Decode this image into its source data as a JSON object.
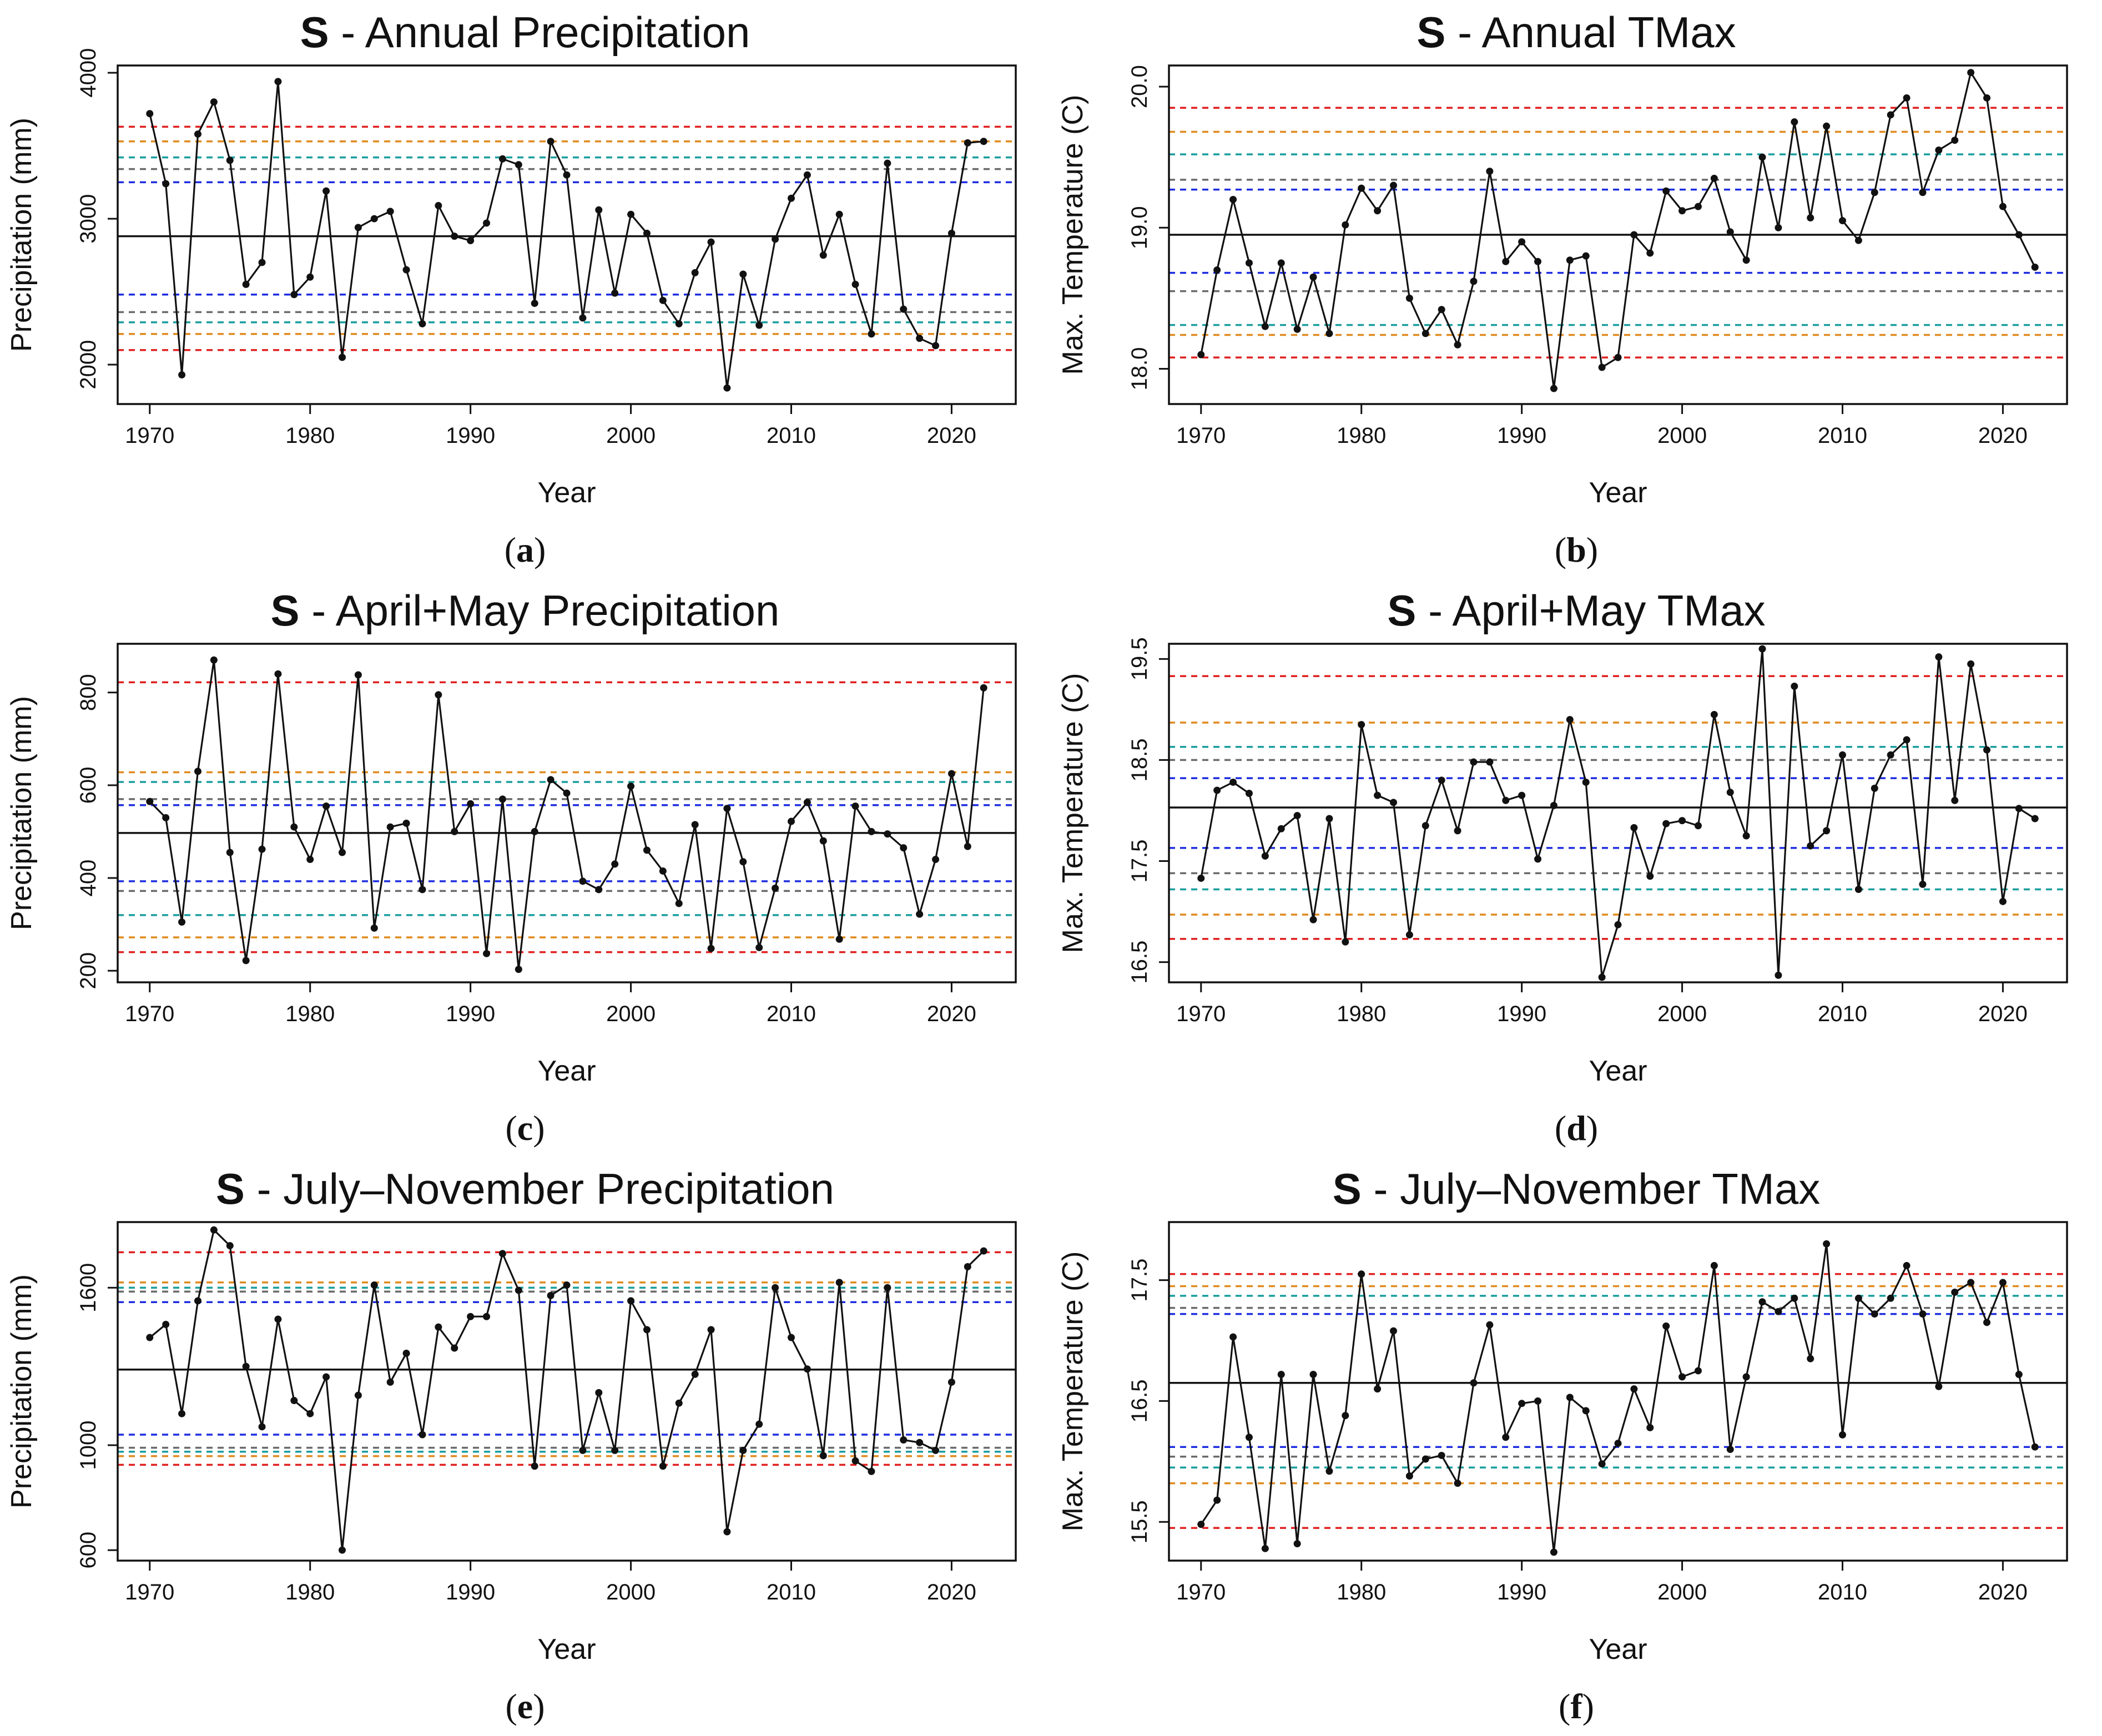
{
  "chart_data": [
    {
      "type": "line",
      "caption_letter": "a",
      "title_bold": "S",
      "title_rest": " - Annual Precipitation",
      "xlabel": "Year",
      "ylabel": "Precipitation (mm)",
      "xlim": [
        1968,
        2024
      ],
      "ylim": [
        1730,
        4050
      ],
      "xticks": [
        1970,
        1980,
        1990,
        2000,
        2010,
        2020
      ],
      "yticks": [
        2000,
        3000,
        4000
      ],
      "ytick_labels": [
        "2000",
        "3000",
        "4000"
      ],
      "mean": 2880,
      "thresholds": [
        {
          "color": "#e02020",
          "values": [
            3630,
            2100
          ]
        },
        {
          "color": "#e08a1e",
          "values": [
            3530,
            2210
          ]
        },
        {
          "color": "#6b6b6b",
          "values": [
            3340,
            2360
          ]
        },
        {
          "color": "#1a9e9e",
          "values": [
            3420,
            2290
          ]
        },
        {
          "color": "#1f2ee0",
          "values": [
            3250,
            2480
          ]
        }
      ],
      "x": [
        1970,
        1971,
        1972,
        1973,
        1974,
        1975,
        1976,
        1977,
        1978,
        1979,
        1980,
        1981,
        1982,
        1983,
        1984,
        1985,
        1986,
        1987,
        1988,
        1989,
        1990,
        1991,
        1992,
        1993,
        1994,
        1995,
        1996,
        1997,
        1998,
        1999,
        2000,
        2001,
        2002,
        2003,
        2004,
        2005,
        2006,
        2007,
        2008,
        2009,
        2010,
        2011,
        2012,
        2013,
        2014,
        2015,
        2016,
        2017,
        2018,
        2019,
        2020,
        2021,
        2022
      ],
      "values": [
        3720,
        3240,
        1930,
        3580,
        3800,
        3400,
        2550,
        2700,
        3940,
        2480,
        2600,
        3190,
        2050,
        2940,
        3000,
        3050,
        2650,
        2280,
        3090,
        2880,
        2850,
        2970,
        3410,
        3370,
        2420,
        3530,
        3300,
        2320,
        3060,
        2490,
        3030,
        2900,
        2440,
        2280,
        2630,
        2840,
        1840,
        2620,
        2270,
        2860,
        3140,
        3300,
        2750,
        3030,
        2550,
        2210,
        3380,
        2380,
        2180,
        2130,
        2900,
        3520,
        3530
      ]
    },
    {
      "type": "line",
      "caption_letter": "b",
      "title_bold": "S",
      "title_rest": " - Annual TMax",
      "xlabel": "Year",
      "ylabel": "Max. Temperature (C)",
      "xlim": [
        1968,
        2024
      ],
      "ylim": [
        17.75,
        20.15
      ],
      "xticks": [
        1970,
        1980,
        1990,
        2000,
        2010,
        2020
      ],
      "yticks": [
        18.0,
        19.0,
        20.0
      ],
      "ytick_labels": [
        "18.0",
        "19.0",
        "20.0"
      ],
      "mean": 18.95,
      "thresholds": [
        {
          "color": "#e02020",
          "values": [
            19.85,
            18.08
          ]
        },
        {
          "color": "#e08a1e",
          "values": [
            19.68,
            18.24
          ]
        },
        {
          "color": "#6b6b6b",
          "values": [
            19.34,
            18.55
          ]
        },
        {
          "color": "#1a9e9e",
          "values": [
            19.52,
            18.31
          ]
        },
        {
          "color": "#1f2ee0",
          "values": [
            19.27,
            18.68
          ]
        }
      ],
      "x": [
        1970,
        1971,
        1972,
        1973,
        1974,
        1975,
        1976,
        1977,
        1978,
        1979,
        1980,
        1981,
        1982,
        1983,
        1984,
        1985,
        1986,
        1987,
        1988,
        1989,
        1990,
        1991,
        1992,
        1993,
        1994,
        1995,
        1996,
        1997,
        1998,
        1999,
        2000,
        2001,
        2002,
        2003,
        2004,
        2005,
        2006,
        2007,
        2008,
        2009,
        2010,
        2011,
        2012,
        2013,
        2014,
        2015,
        2016,
        2017,
        2018,
        2019,
        2020,
        2021,
        2022
      ],
      "values": [
        18.1,
        18.7,
        19.2,
        18.75,
        18.3,
        18.75,
        18.28,
        18.65,
        18.25,
        19.02,
        19.28,
        19.12,
        19.3,
        18.5,
        18.25,
        18.42,
        18.17,
        18.62,
        19.4,
        18.76,
        18.9,
        18.76,
        17.86,
        18.77,
        18.8,
        18.01,
        18.08,
        18.95,
        18.82,
        19.26,
        19.12,
        19.15,
        19.35,
        18.97,
        18.77,
        19.5,
        19.0,
        19.75,
        19.07,
        19.72,
        19.05,
        18.91,
        19.25,
        19.8,
        19.92,
        19.25,
        19.55,
        19.62,
        20.1,
        19.92,
        19.15,
        18.95,
        18.72
      ]
    },
    {
      "type": "line",
      "caption_letter": "c",
      "title_bold": "S",
      "title_rest": " - April+May Precipitation",
      "xlabel": "Year",
      "ylabel": "Precipitation (mm)",
      "xlim": [
        1968,
        2024
      ],
      "ylim": [
        175,
        905
      ],
      "xticks": [
        1970,
        1980,
        1990,
        2000,
        2010,
        2020
      ],
      "yticks": [
        200,
        400,
        600,
        800
      ],
      "ytick_labels": [
        "200",
        "400",
        "600",
        "800"
      ],
      "mean": 497,
      "thresholds": [
        {
          "color": "#e02020",
          "values": [
            822,
            240
          ]
        },
        {
          "color": "#e08a1e",
          "values": [
            628,
            272
          ]
        },
        {
          "color": "#6b6b6b",
          "values": [
            570,
            372
          ]
        },
        {
          "color": "#1a9e9e",
          "values": [
            607,
            320
          ]
        },
        {
          "color": "#1f2ee0",
          "values": [
            557,
            393
          ]
        }
      ],
      "x": [
        1970,
        1971,
        1972,
        1973,
        1974,
        1975,
        1976,
        1977,
        1978,
        1979,
        1980,
        1981,
        1982,
        1983,
        1984,
        1985,
        1986,
        1987,
        1988,
        1989,
        1990,
        1991,
        1992,
        1993,
        1994,
        1995,
        1996,
        1997,
        1998,
        1999,
        2000,
        2001,
        2002,
        2003,
        2004,
        2005,
        2006,
        2007,
        2008,
        2009,
        2010,
        2011,
        2012,
        2013,
        2014,
        2015,
        2016,
        2017,
        2018,
        2019,
        2020,
        2021,
        2022
      ],
      "values": [
        565,
        530,
        305,
        630,
        870,
        455,
        222,
        462,
        840,
        510,
        440,
        555,
        455,
        838,
        292,
        510,
        518,
        375,
        795,
        500,
        560,
        237,
        570,
        203,
        500,
        612,
        583,
        393,
        375,
        430,
        598,
        460,
        415,
        345,
        515,
        248,
        550,
        435,
        250,
        378,
        522,
        563,
        480,
        268,
        555,
        500,
        495,
        465,
        322,
        440,
        625,
        468,
        810
      ]
    },
    {
      "type": "line",
      "caption_letter": "d",
      "title_bold": "S",
      "title_rest": " - April+May TMax",
      "xlabel": "Year",
      "ylabel": "Max. Temperature (C)",
      "xlim": [
        1968,
        2024
      ],
      "ylim": [
        16.3,
        19.65
      ],
      "xticks": [
        1970,
        1980,
        1990,
        2000,
        2010,
        2020
      ],
      "yticks": [
        16.5,
        17.5,
        18.5,
        19.5
      ],
      "ytick_labels": [
        "16.5",
        "17.5",
        "18.5",
        "19.5"
      ],
      "mean": 18.03,
      "thresholds": [
        {
          "color": "#e02020",
          "values": [
            19.33,
            16.73
          ]
        },
        {
          "color": "#e08a1e",
          "values": [
            18.87,
            16.97
          ]
        },
        {
          "color": "#6b6b6b",
          "values": [
            18.5,
            17.38
          ]
        },
        {
          "color": "#1a9e9e",
          "values": [
            18.63,
            17.22
          ]
        },
        {
          "color": "#1f2ee0",
          "values": [
            18.32,
            17.63
          ]
        }
      ],
      "x": [
        1970,
        1971,
        1972,
        1973,
        1974,
        1975,
        1976,
        1977,
        1978,
        1979,
        1980,
        1981,
        1982,
        1983,
        1984,
        1985,
        1986,
        1987,
        1988,
        1989,
        1990,
        1991,
        1992,
        1993,
        1994,
        1995,
        1996,
        1997,
        1998,
        1999,
        2000,
        2001,
        2002,
        2003,
        2004,
        2005,
        2006,
        2007,
        2008,
        2009,
        2010,
        2011,
        2012,
        2013,
        2014,
        2015,
        2016,
        2017,
        2018,
        2019,
        2020,
        2021,
        2022
      ],
      "values": [
        17.33,
        18.2,
        18.28,
        18.17,
        17.55,
        17.82,
        17.95,
        16.92,
        17.92,
        16.7,
        18.85,
        18.15,
        18.08,
        16.77,
        17.85,
        18.3,
        17.8,
        18.48,
        18.48,
        18.1,
        18.15,
        17.52,
        18.05,
        18.9,
        18.28,
        16.35,
        16.87,
        17.83,
        17.35,
        17.87,
        17.9,
        17.85,
        18.95,
        18.18,
        17.75,
        19.6,
        16.37,
        19.23,
        17.65,
        17.8,
        18.55,
        17.22,
        18.22,
        18.55,
        18.7,
        17.27,
        19.52,
        18.1,
        19.45,
        18.6,
        17.1,
        18.02,
        17.92
      ]
    },
    {
      "type": "line",
      "caption_letter": "e",
      "title_bold": "S",
      "title_rest": " - July–November Precipitation",
      "xlabel": "Year",
      "ylabel": "Precipitation (mm)",
      "xlim": [
        1968,
        2024
      ],
      "ylim": [
        560,
        1850
      ],
      "xticks": [
        1970,
        1980,
        1990,
        2000,
        2010,
        2020
      ],
      "yticks": [
        600,
        1000,
        1600
      ],
      "ytick_labels": [
        "600",
        "1000",
        "1600"
      ],
      "mean": 1288,
      "thresholds": [
        {
          "color": "#e02020",
          "values": [
            1735,
            925
          ]
        },
        {
          "color": "#e08a1e",
          "values": [
            1620,
            958
          ]
        },
        {
          "color": "#6b6b6b",
          "values": [
            1585,
            990
          ]
        },
        {
          "color": "#1a9e9e",
          "values": [
            1600,
            975
          ]
        },
        {
          "color": "#1f2ee0",
          "values": [
            1545,
            1040
          ]
        }
      ],
      "x": [
        1970,
        1971,
        1972,
        1973,
        1974,
        1975,
        1976,
        1977,
        1978,
        1979,
        1980,
        1981,
        1982,
        1983,
        1984,
        1985,
        1986,
        1987,
        1988,
        1989,
        1990,
        1991,
        1992,
        1993,
        1994,
        1995,
        1996,
        1997,
        1998,
        1999,
        2000,
        2001,
        2002,
        2003,
        2004,
        2005,
        2006,
        2007,
        2008,
        2009,
        2010,
        2011,
        2012,
        2013,
        2014,
        2015,
        2016,
        2017,
        2018,
        2019,
        2020,
        2021,
        2022
      ],
      "values": [
        1410,
        1460,
        1120,
        1550,
        1820,
        1760,
        1300,
        1070,
        1480,
        1170,
        1120,
        1260,
        600,
        1190,
        1610,
        1240,
        1350,
        1040,
        1450,
        1370,
        1490,
        1490,
        1730,
        1590,
        920,
        1570,
        1610,
        980,
        1200,
        980,
        1550,
        1440,
        920,
        1160,
        1270,
        1440,
        670,
        980,
        1080,
        1600,
        1410,
        1290,
        960,
        1620,
        940,
        900,
        1600,
        1020,
        1010,
        980,
        1240,
        1680,
        1740
      ]
    },
    {
      "type": "line",
      "caption_letter": "f",
      "title_bold": "S",
      "title_rest": " - July–November TMax",
      "xlabel": "Year",
      "ylabel": "Max. Temperature (C)",
      "xlim": [
        1968,
        2024
      ],
      "ylim": [
        15.18,
        17.98
      ],
      "xticks": [
        1970,
        1980,
        1990,
        2000,
        2010,
        2020
      ],
      "yticks": [
        15.5,
        16.5,
        17.5
      ],
      "ytick_labels": [
        "15.5",
        "16.5",
        "17.5"
      ],
      "mean": 16.65,
      "thresholds": [
        {
          "color": "#e02020",
          "values": [
            17.55,
            15.45
          ]
        },
        {
          "color": "#e08a1e",
          "values": [
            17.45,
            15.82
          ]
        },
        {
          "color": "#6b6b6b",
          "values": [
            17.27,
            16.04
          ]
        },
        {
          "color": "#1a9e9e",
          "values": [
            17.37,
            15.95
          ]
        },
        {
          "color": "#1f2ee0",
          "values": [
            17.22,
            16.12
          ]
        }
      ],
      "x": [
        1970,
        1971,
        1972,
        1973,
        1974,
        1975,
        1976,
        1977,
        1978,
        1979,
        1980,
        1981,
        1982,
        1983,
        1984,
        1985,
        1986,
        1987,
        1988,
        1989,
        1990,
        1991,
        1992,
        1993,
        1994,
        1995,
        1996,
        1997,
        1998,
        1999,
        2000,
        2001,
        2002,
        2003,
        2004,
        2005,
        2006,
        2007,
        2008,
        2009,
        2010,
        2011,
        2012,
        2013,
        2014,
        2015,
        2016,
        2017,
        2018,
        2019,
        2020,
        2021,
        2022
      ],
      "values": [
        15.48,
        15.68,
        17.03,
        16.2,
        15.28,
        16.72,
        15.32,
        16.72,
        15.92,
        16.38,
        17.55,
        16.6,
        17.08,
        15.88,
        16.02,
        16.05,
        15.82,
        16.65,
        17.13,
        16.2,
        16.48,
        16.5,
        15.25,
        16.53,
        16.42,
        15.98,
        16.15,
        16.6,
        16.28,
        17.12,
        16.7,
        16.75,
        17.62,
        16.1,
        16.7,
        17.32,
        17.24,
        17.35,
        16.85,
        17.8,
        16.22,
        17.35,
        17.22,
        17.35,
        17.62,
        17.22,
        16.62,
        17.4,
        17.48,
        17.15,
        17.48,
        16.72,
        16.12
      ]
    }
  ]
}
